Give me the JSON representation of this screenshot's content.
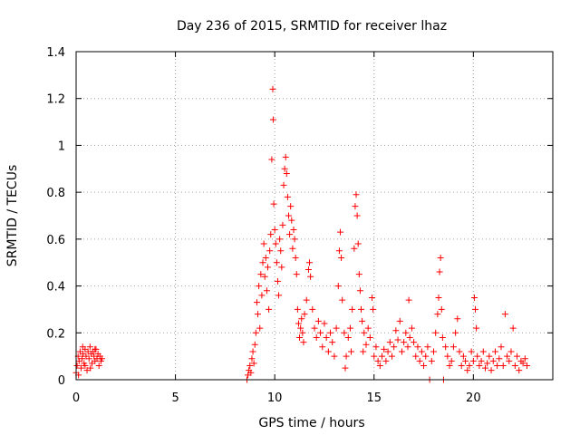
{
  "chart_data": {
    "type": "scatter",
    "title": "Day 236 of 2015, SRMTID for receiver lhaz",
    "xlabel": "GPS time / hours",
    "ylabel": "SRMTID / TECUs",
    "xlim": [
      0,
      24
    ],
    "ylim": [
      0,
      1.4
    ],
    "x_ticks": [
      0,
      5,
      10,
      15,
      20
    ],
    "x_tick_labels": [
      "0",
      "5",
      "10",
      "15",
      "20"
    ],
    "y_ticks": [
      0,
      0.2,
      0.4,
      0.6,
      0.8,
      1.0,
      1.2,
      1.4
    ],
    "y_tick_labels": [
      "0",
      "0.2",
      "0.4",
      "0.6",
      "0.8",
      "1",
      "1.2",
      "1.4"
    ],
    "grid": true,
    "marker": "+",
    "colors": {
      "marker": "#ff0000",
      "axis": "#000000",
      "grid": "#a0a0a0"
    },
    "series": [
      {
        "name": "SRMTID",
        "points": [
          [
            0.0,
            0.03
          ],
          [
            0.05,
            0.06
          ],
          [
            0.1,
            0.1
          ],
          [
            0.15,
            0.08
          ],
          [
            0.2,
            0.12
          ],
          [
            0.25,
            0.05
          ],
          [
            0.3,
            0.09
          ],
          [
            0.35,
            0.11
          ],
          [
            0.4,
            0.07
          ],
          [
            0.45,
            0.13
          ],
          [
            0.5,
            0.1
          ],
          [
            0.55,
            0.04
          ],
          [
            0.6,
            0.12
          ],
          [
            0.65,
            0.09
          ],
          [
            0.7,
            0.14
          ],
          [
            0.75,
            0.11
          ],
          [
            0.8,
            0.07
          ],
          [
            0.85,
            0.12
          ],
          [
            0.9,
            0.1
          ],
          [
            0.95,
            0.08
          ],
          [
            1.0,
            0.13
          ],
          [
            1.05,
            0.09
          ],
          [
            1.1,
            0.11
          ],
          [
            1.15,
            0.06
          ],
          [
            1.2,
            0.1
          ],
          [
            1.25,
            0.08
          ],
          [
            1.3,
            0.09
          ],
          [
            0.12,
            0.02
          ],
          [
            0.33,
            0.14
          ],
          [
            0.72,
            0.05
          ],
          [
            0.95,
            0.13
          ],
          [
            0.45,
            0.06
          ],
          [
            8.6,
            0.0
          ],
          [
            8.65,
            0.02
          ],
          [
            8.7,
            0.04
          ],
          [
            8.75,
            0.06
          ],
          [
            8.8,
            0.03
          ],
          [
            8.85,
            0.09
          ],
          [
            8.9,
            0.12
          ],
          [
            8.95,
            0.07
          ],
          [
            9.0,
            0.15
          ],
          [
            9.05,
            0.2
          ],
          [
            9.1,
            0.33
          ],
          [
            9.15,
            0.28
          ],
          [
            9.2,
            0.4
          ],
          [
            9.25,
            0.22
          ],
          [
            9.3,
            0.45
          ],
          [
            9.35,
            0.36
          ],
          [
            9.4,
            0.5
          ],
          [
            9.45,
            0.58
          ],
          [
            9.5,
            0.44
          ],
          [
            9.55,
            0.52
          ],
          [
            9.6,
            0.38
          ],
          [
            9.65,
            0.48
          ],
          [
            9.7,
            0.3
          ],
          [
            9.75,
            0.55
          ],
          [
            9.8,
            0.62
          ],
          [
            9.85,
            0.94
          ],
          [
            9.9,
            1.24
          ],
          [
            9.92,
            1.11
          ],
          [
            9.95,
            0.75
          ],
          [
            10.0,
            0.64
          ],
          [
            10.05,
            0.58
          ],
          [
            10.1,
            0.5
          ],
          [
            10.15,
            0.42
          ],
          [
            10.2,
            0.36
          ],
          [
            10.25,
            0.6
          ],
          [
            10.3,
            0.55
          ],
          [
            10.35,
            0.48
          ],
          [
            10.4,
            0.66
          ],
          [
            10.45,
            0.83
          ],
          [
            10.5,
            0.9
          ],
          [
            10.55,
            0.95
          ],
          [
            10.6,
            0.88
          ],
          [
            10.65,
            0.78
          ],
          [
            10.7,
            0.7
          ],
          [
            10.75,
            0.62
          ],
          [
            10.8,
            0.74
          ],
          [
            10.85,
            0.68
          ],
          [
            10.9,
            0.56
          ],
          [
            10.95,
            0.64
          ],
          [
            11.0,
            0.6
          ],
          [
            11.05,
            0.52
          ],
          [
            11.1,
            0.45
          ],
          [
            11.15,
            0.3
          ],
          [
            11.2,
            0.24
          ],
          [
            11.25,
            0.18
          ],
          [
            11.3,
            0.22
          ],
          [
            11.35,
            0.26
          ],
          [
            11.4,
            0.2
          ],
          [
            11.45,
            0.16
          ],
          [
            11.5,
            0.28
          ],
          [
            11.6,
            0.34
          ],
          [
            11.7,
            0.47
          ],
          [
            11.75,
            0.5
          ],
          [
            11.8,
            0.44
          ],
          [
            11.9,
            0.3
          ],
          [
            12.0,
            0.22
          ],
          [
            12.1,
            0.18
          ],
          [
            12.2,
            0.25
          ],
          [
            12.3,
            0.2
          ],
          [
            12.4,
            0.14
          ],
          [
            12.5,
            0.24
          ],
          [
            12.6,
            0.18
          ],
          [
            12.7,
            0.12
          ],
          [
            12.8,
            0.2
          ],
          [
            12.9,
            0.16
          ],
          [
            13.0,
            0.1
          ],
          [
            13.1,
            0.22
          ],
          [
            13.2,
            0.4
          ],
          [
            13.25,
            0.55
          ],
          [
            13.3,
            0.63
          ],
          [
            13.35,
            0.52
          ],
          [
            13.4,
            0.34
          ],
          [
            13.5,
            0.2
          ],
          [
            13.55,
            0.05
          ],
          [
            13.6,
            0.1
          ],
          [
            13.7,
            0.18
          ],
          [
            13.8,
            0.22
          ],
          [
            13.85,
            0.12
          ],
          [
            13.9,
            0.3
          ],
          [
            14.0,
            0.56
          ],
          [
            14.05,
            0.74
          ],
          [
            14.1,
            0.79
          ],
          [
            14.15,
            0.7
          ],
          [
            14.2,
            0.58
          ],
          [
            14.25,
            0.45
          ],
          [
            14.3,
            0.38
          ],
          [
            14.35,
            0.3
          ],
          [
            14.4,
            0.25
          ],
          [
            14.45,
            0.12
          ],
          [
            14.5,
            0.2
          ],
          [
            14.6,
            0.15
          ],
          [
            14.7,
            0.22
          ],
          [
            14.8,
            0.18
          ],
          [
            14.9,
            0.35
          ],
          [
            14.95,
            0.3
          ],
          [
            15.0,
            0.1
          ],
          [
            15.1,
            0.14
          ],
          [
            15.2,
            0.08
          ],
          [
            15.3,
            0.06
          ],
          [
            15.4,
            0.1
          ],
          [
            15.5,
            0.13
          ],
          [
            15.6,
            0.08
          ],
          [
            15.7,
            0.12
          ],
          [
            15.8,
            0.16
          ],
          [
            15.9,
            0.1
          ],
          [
            16.0,
            0.14
          ],
          [
            16.1,
            0.21
          ],
          [
            16.2,
            0.17
          ],
          [
            16.3,
            0.25
          ],
          [
            16.4,
            0.12
          ],
          [
            16.5,
            0.16
          ],
          [
            16.6,
            0.2
          ],
          [
            16.7,
            0.14
          ],
          [
            16.75,
            0.34
          ],
          [
            16.8,
            0.18
          ],
          [
            16.9,
            0.22
          ],
          [
            17.0,
            0.16
          ],
          [
            17.1,
            0.1
          ],
          [
            17.2,
            0.14
          ],
          [
            17.3,
            0.08
          ],
          [
            17.4,
            0.12
          ],
          [
            17.5,
            0.06
          ],
          [
            17.6,
            0.1
          ],
          [
            17.7,
            0.14
          ],
          [
            17.8,
            0.0
          ],
          [
            17.9,
            0.08
          ],
          [
            18.0,
            0.12
          ],
          [
            18.1,
            0.2
          ],
          [
            18.2,
            0.28
          ],
          [
            18.25,
            0.35
          ],
          [
            18.3,
            0.46
          ],
          [
            18.35,
            0.52
          ],
          [
            18.4,
            0.3
          ],
          [
            18.45,
            0.18
          ],
          [
            18.5,
            0.0
          ],
          [
            18.6,
            0.14
          ],
          [
            18.7,
            0.1
          ],
          [
            18.8,
            0.06
          ],
          [
            18.9,
            0.08
          ],
          [
            19.0,
            0.14
          ],
          [
            19.1,
            0.2
          ],
          [
            19.2,
            0.26
          ],
          [
            19.3,
            0.12
          ],
          [
            19.4,
            0.06
          ],
          [
            19.5,
            0.1
          ],
          [
            19.6,
            0.08
          ],
          [
            19.7,
            0.04
          ],
          [
            19.8,
            0.06
          ],
          [
            19.9,
            0.12
          ],
          [
            20.0,
            0.08
          ],
          [
            20.05,
            0.35
          ],
          [
            20.1,
            0.3
          ],
          [
            20.15,
            0.22
          ],
          [
            20.2,
            0.1
          ],
          [
            20.3,
            0.06
          ],
          [
            20.4,
            0.08
          ],
          [
            20.5,
            0.12
          ],
          [
            20.6,
            0.05
          ],
          [
            20.7,
            0.07
          ],
          [
            20.8,
            0.1
          ],
          [
            20.9,
            0.04
          ],
          [
            21.0,
            0.08
          ],
          [
            21.1,
            0.12
          ],
          [
            21.2,
            0.06
          ],
          [
            21.3,
            0.09
          ],
          [
            21.4,
            0.14
          ],
          [
            21.5,
            0.06
          ],
          [
            21.6,
            0.28
          ],
          [
            21.7,
            0.1
          ],
          [
            21.8,
            0.08
          ],
          [
            21.9,
            0.12
          ],
          [
            22.0,
            0.22
          ],
          [
            22.1,
            0.06
          ],
          [
            22.2,
            0.1
          ],
          [
            22.3,
            0.04
          ],
          [
            22.4,
            0.08
          ],
          [
            22.5,
            0.07
          ],
          [
            22.6,
            0.09
          ],
          [
            22.7,
            0.06
          ]
        ]
      }
    ]
  }
}
